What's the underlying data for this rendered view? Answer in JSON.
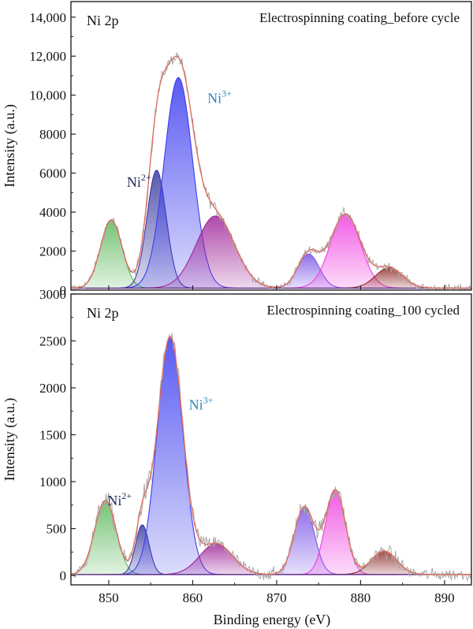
{
  "figure": {
    "xlabel": "Binding energy (eV)",
    "xlim": [
      845.5,
      893.2
    ],
    "xticks": [
      850,
      860,
      870,
      880,
      890
    ]
  },
  "chart_data": [
    {
      "type": "area",
      "corner_label": "Ni 2p",
      "title": "Electrospinning coating_before cycle",
      "xlabel": "",
      "ylabel": "Intensity (a.u.)",
      "ylim": [
        0,
        14800
      ],
      "yticks": [
        0,
        2000,
        4000,
        6000,
        8000,
        "10,000",
        "12,000",
        "14,000"
      ],
      "ytick_values": [
        0,
        2000,
        4000,
        6000,
        8000,
        10000,
        12000,
        14000
      ],
      "annotations": [
        {
          "base": "Ni",
          "sup": "2+",
          "x": 853.6,
          "y": 5300,
          "color": "#1f2a5c"
        },
        {
          "base": "Ni",
          "sup": "3+",
          "x": 863.2,
          "y": 9600,
          "color": "#2c86b9"
        }
      ],
      "baseline": 100,
      "peaks": [
        {
          "center": 850.3,
          "fwhm": 3.0,
          "height": 3500,
          "color": "#5cb85c"
        },
        {
          "center": 855.7,
          "fwhm": 2.7,
          "height": 6050,
          "color": "#3a3aa0"
        },
        {
          "center": 858.3,
          "fwhm": 4.0,
          "height": 10800,
          "color": "#3d3df0"
        },
        {
          "center": 862.7,
          "fwhm": 5.4,
          "height": 3700,
          "color": "#a0289a"
        },
        {
          "center": 873.8,
          "fwhm": 3.0,
          "height": 1750,
          "color": "#7b55e8"
        },
        {
          "center": 878.2,
          "fwhm": 4.2,
          "height": 3800,
          "color": "#ef3fe0"
        },
        {
          "center": 883.4,
          "fwhm": 3.8,
          "height": 1050,
          "color": "#8e2a2a"
        }
      ],
      "noise": 300
    },
    {
      "type": "area",
      "corner_label": "Ni 2p",
      "title": "Electrospinning coating_100 cycled",
      "xlabel": "Binding energy (eV)",
      "ylabel": "Intensity (a.u.)",
      "ylim": [
        -100,
        3000
      ],
      "yticks": [
        0,
        500,
        1000,
        1500,
        2000,
        2500,
        3000
      ],
      "ytick_values": [
        0,
        500,
        1000,
        1500,
        2000,
        2500,
        3000
      ],
      "annotations": [
        {
          "base": "Ni",
          "sup": "2+",
          "x": 851.3,
          "y": 750,
          "color": "#1f2a5c"
        },
        {
          "base": "Ni",
          "sup": "3+",
          "x": 861.0,
          "y": 1770,
          "color": "#2c86b9"
        }
      ],
      "baseline": 10,
      "peaks": [
        {
          "center": 849.6,
          "fwhm": 3.0,
          "height": 790,
          "color": "#5cb85c"
        },
        {
          "center": 854.0,
          "fwhm": 1.9,
          "height": 530,
          "color": "#3a3aa0"
        },
        {
          "center": 857.3,
          "fwhm": 3.6,
          "height": 2530,
          "color": "#3d3df0"
        },
        {
          "center": 862.8,
          "fwhm": 4.6,
          "height": 330,
          "color": "#a0289a"
        },
        {
          "center": 873.3,
          "fwhm": 2.8,
          "height": 720,
          "color": "#7b55e8"
        },
        {
          "center": 877.0,
          "fwhm": 2.8,
          "height": 900,
          "color": "#ef3fe0"
        },
        {
          "center": 882.8,
          "fwhm": 3.6,
          "height": 250,
          "color": "#8e2a2a"
        }
      ],
      "noise": 110
    }
  ]
}
